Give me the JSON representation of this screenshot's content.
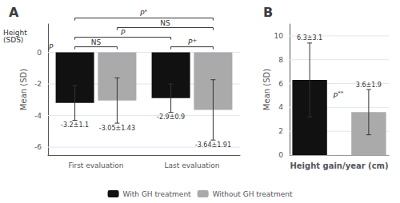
{
  "chart_data": [
    {
      "type": "bar",
      "title": "A",
      "ylabel": "Mean (SD)",
      "annotations": [
        "Height\n(SDS)",
        "P"
      ],
      "categories": [
        "First evaluation",
        "Last evaluation"
      ],
      "series": [
        {
          "name": "With GH treatment",
          "color": "#111111",
          "values": [
            -3.2,
            -2.9
          ],
          "errors": [
            1.1,
            0.9
          ],
          "value_labels": [
            "-3.2±1.1",
            "-2.9±0.9"
          ]
        },
        {
          "name": "Without GH treatment",
          "color": "#aaaaaa",
          "values": [
            -3.05,
            -3.64
          ],
          "errors": [
            1.43,
            1.91
          ],
          "value_labels": [
            "-3.05±1.43",
            "-3.64±1.91"
          ]
        }
      ],
      "brackets": [
        {
          "label": "NS",
          "between": [
            [
              "First evaluation",
              "With GH treatment"
            ],
            [
              "First evaluation",
              "Without GH treatment"
            ]
          ]
        },
        {
          "label": "P+",
          "between": [
            [
              "Last evaluation",
              "With GH treatment"
            ],
            [
              "Last evaluation",
              "Without GH treatment"
            ]
          ]
        },
        {
          "label": "P",
          "between": [
            [
              "First evaluation",
              "With GH treatment"
            ],
            [
              "Last evaluation",
              "With GH treatment"
            ]
          ]
        },
        {
          "label": "NS",
          "between": [
            [
              "First evaluation",
              "Without GH treatment"
            ],
            [
              "Last evaluation",
              "Without GH treatment"
            ]
          ]
        },
        {
          "label": "P*",
          "between": [
            [
              "First evaluation",
              "With GH treatment"
            ],
            [
              "Last evaluation",
              "Without GH treatment"
            ]
          ]
        }
      ],
      "ylim": [
        -6.5,
        1.8
      ],
      "yticks": [
        0,
        -2,
        -4,
        -6
      ],
      "grid": true,
      "legend": "bottom",
      "data_labels": true
    },
    {
      "type": "bar",
      "title": "B",
      "ylabel": "Mean (SD)",
      "xlabel": "Height gain/year (cm)",
      "annotations": [
        "P**"
      ],
      "categories": [
        null
      ],
      "series": [
        {
          "name": "With GH treatment",
          "color": "#111111",
          "values": [
            6.3
          ],
          "errors": [
            3.1
          ],
          "value_labels": [
            "6.3±3.1"
          ]
        },
        {
          "name": "Without GH treatment",
          "color": "#aaaaaa",
          "values": [
            3.6
          ],
          "errors": [
            1.9
          ],
          "value_labels": [
            "3.6±1.9"
          ]
        }
      ],
      "ylim": [
        0,
        11
      ],
      "yticks": [
        0,
        2,
        4,
        6,
        8,
        10
      ],
      "grid": true,
      "legend": "bottom",
      "data_labels": true,
      "tick_labels": "y"
    }
  ]
}
